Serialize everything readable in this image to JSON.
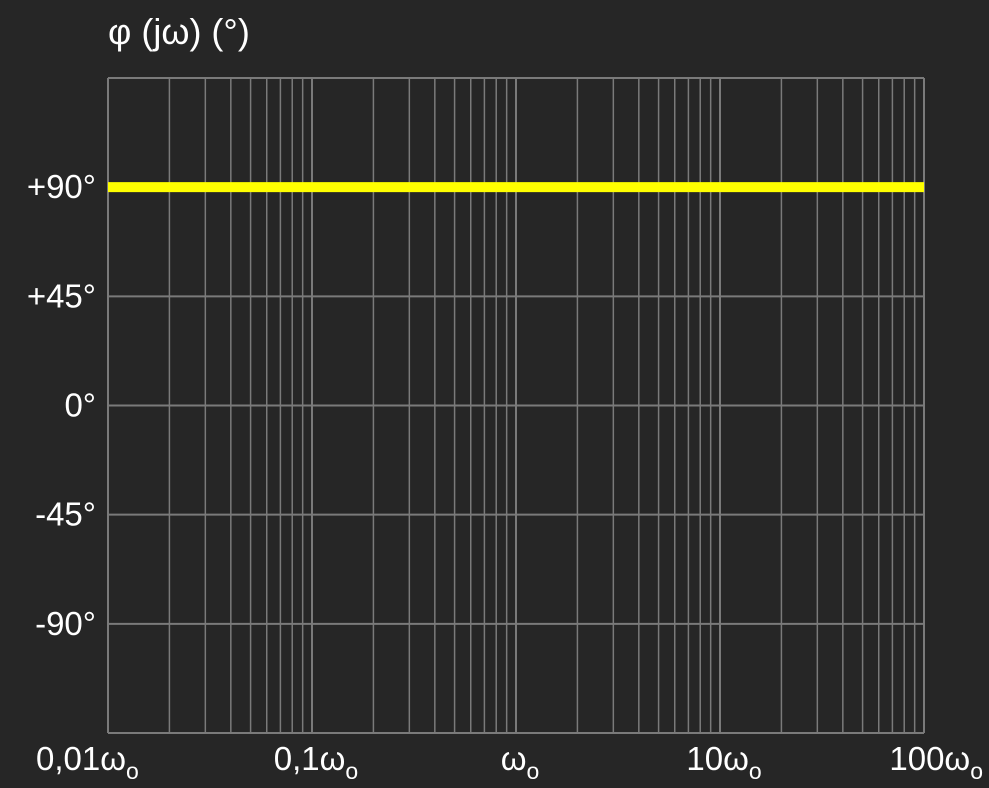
{
  "chart_data": {
    "type": "line",
    "title": "φ (jω) (°)",
    "xlabel": "",
    "ylabel": "",
    "xscale": "log",
    "xlim": [
      0.01,
      100
    ],
    "ylim": [
      -135,
      135
    ],
    "grid": true,
    "legend": "none",
    "x_ticks": [
      {
        "value": 0.01,
        "label": "0,01ω",
        "sub": "o"
      },
      {
        "value": 0.1,
        "label": "0,1ω",
        "sub": "o"
      },
      {
        "value": 1,
        "label": "ω",
        "sub": "o"
      },
      {
        "value": 10,
        "label": "10ω",
        "sub": "o"
      },
      {
        "value": 100,
        "label": "100ω",
        "sub": "o"
      }
    ],
    "y_ticks": [
      {
        "value": 90,
        "label": "+90°"
      },
      {
        "value": 45,
        "label": "+45°"
      },
      {
        "value": 0,
        "label": "0°"
      },
      {
        "value": -45,
        "label": "-45°"
      },
      {
        "value": -90,
        "label": "-90°"
      }
    ],
    "series": [
      {
        "x": [
          0.01,
          100
        ],
        "y": [
          90,
          90
        ],
        "color": "#ffff00"
      }
    ],
    "colors": {
      "background": "#262626",
      "grid": "#7a7a7a",
      "text": "#ffffff",
      "line": "#ffff00"
    }
  }
}
